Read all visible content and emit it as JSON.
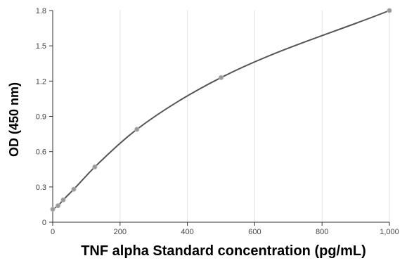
{
  "chart_data": {
    "type": "scatter",
    "xlabel": "TNF alpha Standard concentration (pg/mL)",
    "ylabel": "OD (450 nm)",
    "xlim": [
      0,
      1000
    ],
    "ylim": [
      0,
      1.8
    ],
    "x_ticks": [
      0,
      200,
      400,
      600,
      800,
      1000
    ],
    "x_tick_labels": [
      "0",
      "200",
      "400",
      "600",
      "800",
      "1,000"
    ],
    "y_ticks": [
      0,
      0.3,
      0.6,
      0.9,
      1.2,
      1.5,
      1.8
    ],
    "y_tick_labels": [
      "0",
      "0.3",
      "0.6",
      "0.9",
      "1.2",
      "1.5",
      "1.8"
    ],
    "grid": {
      "vertical": true,
      "horizontal": false
    },
    "series": [
      {
        "points": [
          {
            "x": 0,
            "y": 0.11
          },
          {
            "x": 15.6,
            "y": 0.14
          },
          {
            "x": 31.3,
            "y": 0.19
          },
          {
            "x": 62.5,
            "y": 0.28
          },
          {
            "x": 125,
            "y": 0.47
          },
          {
            "x": 250,
            "y": 0.79
          },
          {
            "x": 500,
            "y": 1.23
          },
          {
            "x": 1000,
            "y": 1.8
          }
        ],
        "fit_curve": true
      }
    ],
    "colors": {
      "curve": "#555555",
      "marker": "#999999",
      "grid": "#e3e3e3",
      "axis": "#333333"
    }
  }
}
